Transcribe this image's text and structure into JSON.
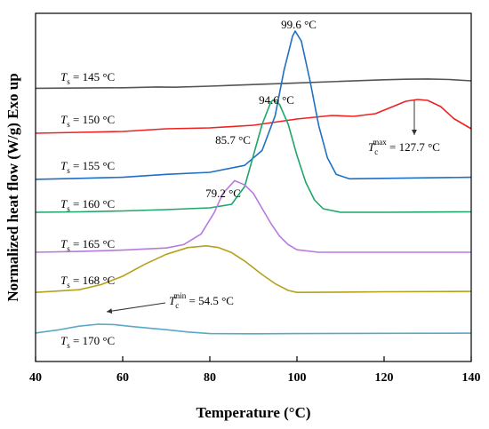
{
  "chart_data": {
    "type": "line",
    "xlabel": "Temperature (°C)",
    "ylabel": "Normalized heat flow (W/g) Exo up",
    "xlim": [
      40,
      140
    ],
    "x_ticks": [
      "40",
      "60",
      "80",
      "100",
      "120",
      "140"
    ],
    "y_ticks_shown": false,
    "grid": false,
    "legend": "none",
    "series": [
      {
        "name": "Ts = 145 °C",
        "sym": "T",
        "sub": "s",
        "value_text": " = 145 °C",
        "color": "#555555",
        "x": [
          40,
          50,
          60,
          68,
          72,
          80,
          90,
          100,
          110,
          120,
          125,
          130,
          135,
          140
        ],
        "y": [
          0.02,
          0.03,
          0.04,
          0.07,
          0.06,
          0.1,
          0.16,
          0.22,
          0.28,
          0.34,
          0.36,
          0.37,
          0.35,
          0.3
        ]
      },
      {
        "name": "Ts = 150 °C",
        "sym": "T",
        "sub": "s",
        "value_text": " = 150 °C",
        "color": "#ee2222",
        "x": [
          40,
          50,
          60,
          70,
          80,
          90,
          100,
          108,
          113,
          118,
          122,
          125,
          127.7,
          130,
          133,
          136,
          140
        ],
        "y": [
          0.02,
          0.04,
          0.06,
          0.12,
          0.14,
          0.2,
          0.34,
          0.42,
          0.4,
          0.46,
          0.62,
          0.74,
          0.78,
          0.76,
          0.62,
          0.35,
          0.12
        ]
      },
      {
        "name": "Ts = 155 °C",
        "sym": "T",
        "sub": "s",
        "value_text": " = 155 °C",
        "color": "#1f6fc5",
        "x": [
          40,
          50,
          60,
          70,
          80,
          88,
          92,
          95,
          97,
          99,
          99.6,
          101,
          103,
          105,
          107,
          109,
          112,
          120,
          140
        ],
        "y": [
          0.02,
          0.04,
          0.06,
          0.12,
          0.16,
          0.3,
          0.6,
          1.3,
          2.2,
          2.9,
          3.0,
          2.8,
          2.0,
          1.1,
          0.45,
          0.12,
          0.03,
          0.04,
          0.06
        ]
      },
      {
        "name": "Ts = 160 °C",
        "sym": "T",
        "sub": "s",
        "value_text": " = 160 °C",
        "color": "#1fa66a",
        "x": [
          40,
          50,
          60,
          70,
          80,
          85,
          88,
          90,
          92,
          94,
          94.6,
          96,
          98,
          100,
          102,
          104,
          106,
          110,
          120,
          140
        ],
        "y": [
          0.02,
          0.03,
          0.05,
          0.08,
          0.12,
          0.2,
          0.6,
          1.3,
          2.0,
          2.5,
          2.55,
          2.45,
          2.0,
          1.3,
          0.7,
          0.3,
          0.1,
          0.02,
          0.02,
          0.03
        ]
      },
      {
        "name": "Ts = 165 °C",
        "sym": "T",
        "sub": "s",
        "value_text": " = 165 °C",
        "color": "#b77ae0",
        "x": [
          40,
          50,
          60,
          70,
          74,
          78,
          81,
          83,
          85.7,
          88,
          90,
          92,
          94,
          96,
          98,
          100,
          105,
          120,
          140
        ],
        "y": [
          0.02,
          0.04,
          0.07,
          0.12,
          0.2,
          0.45,
          0.95,
          1.4,
          1.7,
          1.6,
          1.4,
          1.05,
          0.7,
          0.4,
          0.2,
          0.08,
          0.02,
          0.02,
          0.02
        ]
      },
      {
        "name": "Ts = 168 °C",
        "sym": "T",
        "sub": "s",
        "value_text": " = 168 °C",
        "color": "#b5a21a",
        "x": [
          40,
          50,
          55,
          60,
          65,
          70,
          75,
          79.2,
          82,
          85,
          88,
          92,
          95,
          98,
          100,
          110,
          120,
          140
        ],
        "y": [
          0.02,
          0.1,
          0.25,
          0.5,
          0.85,
          1.15,
          1.35,
          1.4,
          1.35,
          1.2,
          0.95,
          0.55,
          0.28,
          0.08,
          0.02,
          0.03,
          0.04,
          0.05
        ]
      },
      {
        "name": "Ts = 170 °C",
        "sym": "T",
        "sub": "s",
        "value_text": " = 170 °C",
        "color": "#5aa8c8",
        "x": [
          40,
          45,
          50,
          54.5,
          58,
          62,
          66,
          70,
          75,
          80,
          90,
          100,
          120,
          140
        ],
        "y": [
          0.05,
          0.2,
          0.4,
          0.5,
          0.48,
          0.38,
          0.3,
          0.22,
          0.1,
          0.02,
          0.01,
          0.02,
          0.03,
          0.04
        ]
      }
    ],
    "annotations": [
      {
        "text": "99.6 °C",
        "x": 99.6,
        "series": 2
      },
      {
        "text": "94.6 °C",
        "x": 94.6,
        "series": 3
      },
      {
        "text": "85.7 °C",
        "x": 85.7,
        "series": 4
      },
      {
        "text": "79.2 °C",
        "x": 79.2,
        "series": 5
      },
      {
        "sym": "T",
        "sub": "c",
        "sup": "max",
        "rest": " = 127.7 °C",
        "x": 127.7,
        "series": 1
      },
      {
        "sym": "T",
        "sub": "c",
        "sup": "min",
        "rest": " = 54.5 °C",
        "x": 54.5,
        "series": 6
      }
    ]
  }
}
